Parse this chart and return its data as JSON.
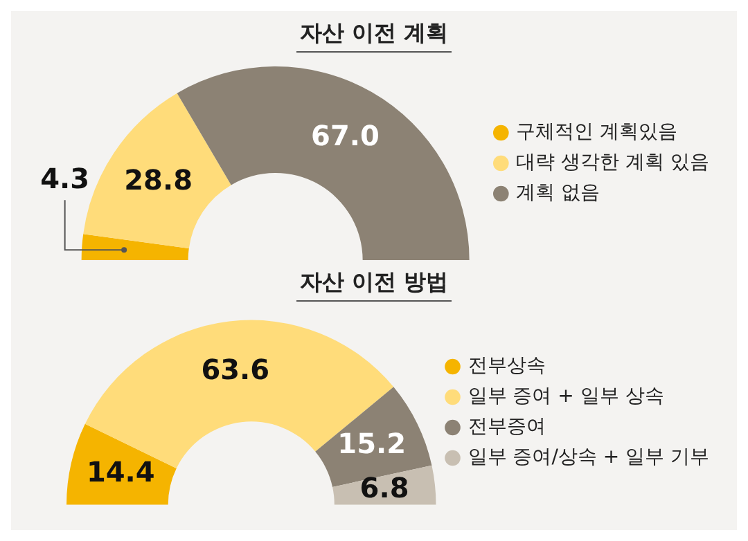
{
  "chart_data": [
    {
      "type": "donut",
      "title": "자산 이전 계획",
      "categories": [
        "구체적인 계획있음",
        "대략 생각한 계획 있음",
        "계획 없음"
      ],
      "values": [
        4.3,
        28.8,
        67.0
      ],
      "value_labels": [
        "4.3",
        "28.8",
        "67.0"
      ],
      "colors": [
        "#f5b400",
        "#ffdc7a",
        "#8c8274"
      ],
      "legend": "right"
    },
    {
      "type": "donut",
      "title": "자산 이전 방법",
      "categories": [
        "전부상속",
        "일부 증여 + 일부 상속",
        "전부증여",
        "일부 증여/상속 + 일부 기부"
      ],
      "values": [
        14.4,
        63.6,
        15.2,
        6.8
      ],
      "value_labels": [
        "14.4",
        "63.6",
        "15.2",
        "6.8"
      ],
      "colors": [
        "#f5b400",
        "#ffdc7a",
        "#8c8274",
        "#c8bfb2"
      ],
      "legend": "right"
    }
  ]
}
